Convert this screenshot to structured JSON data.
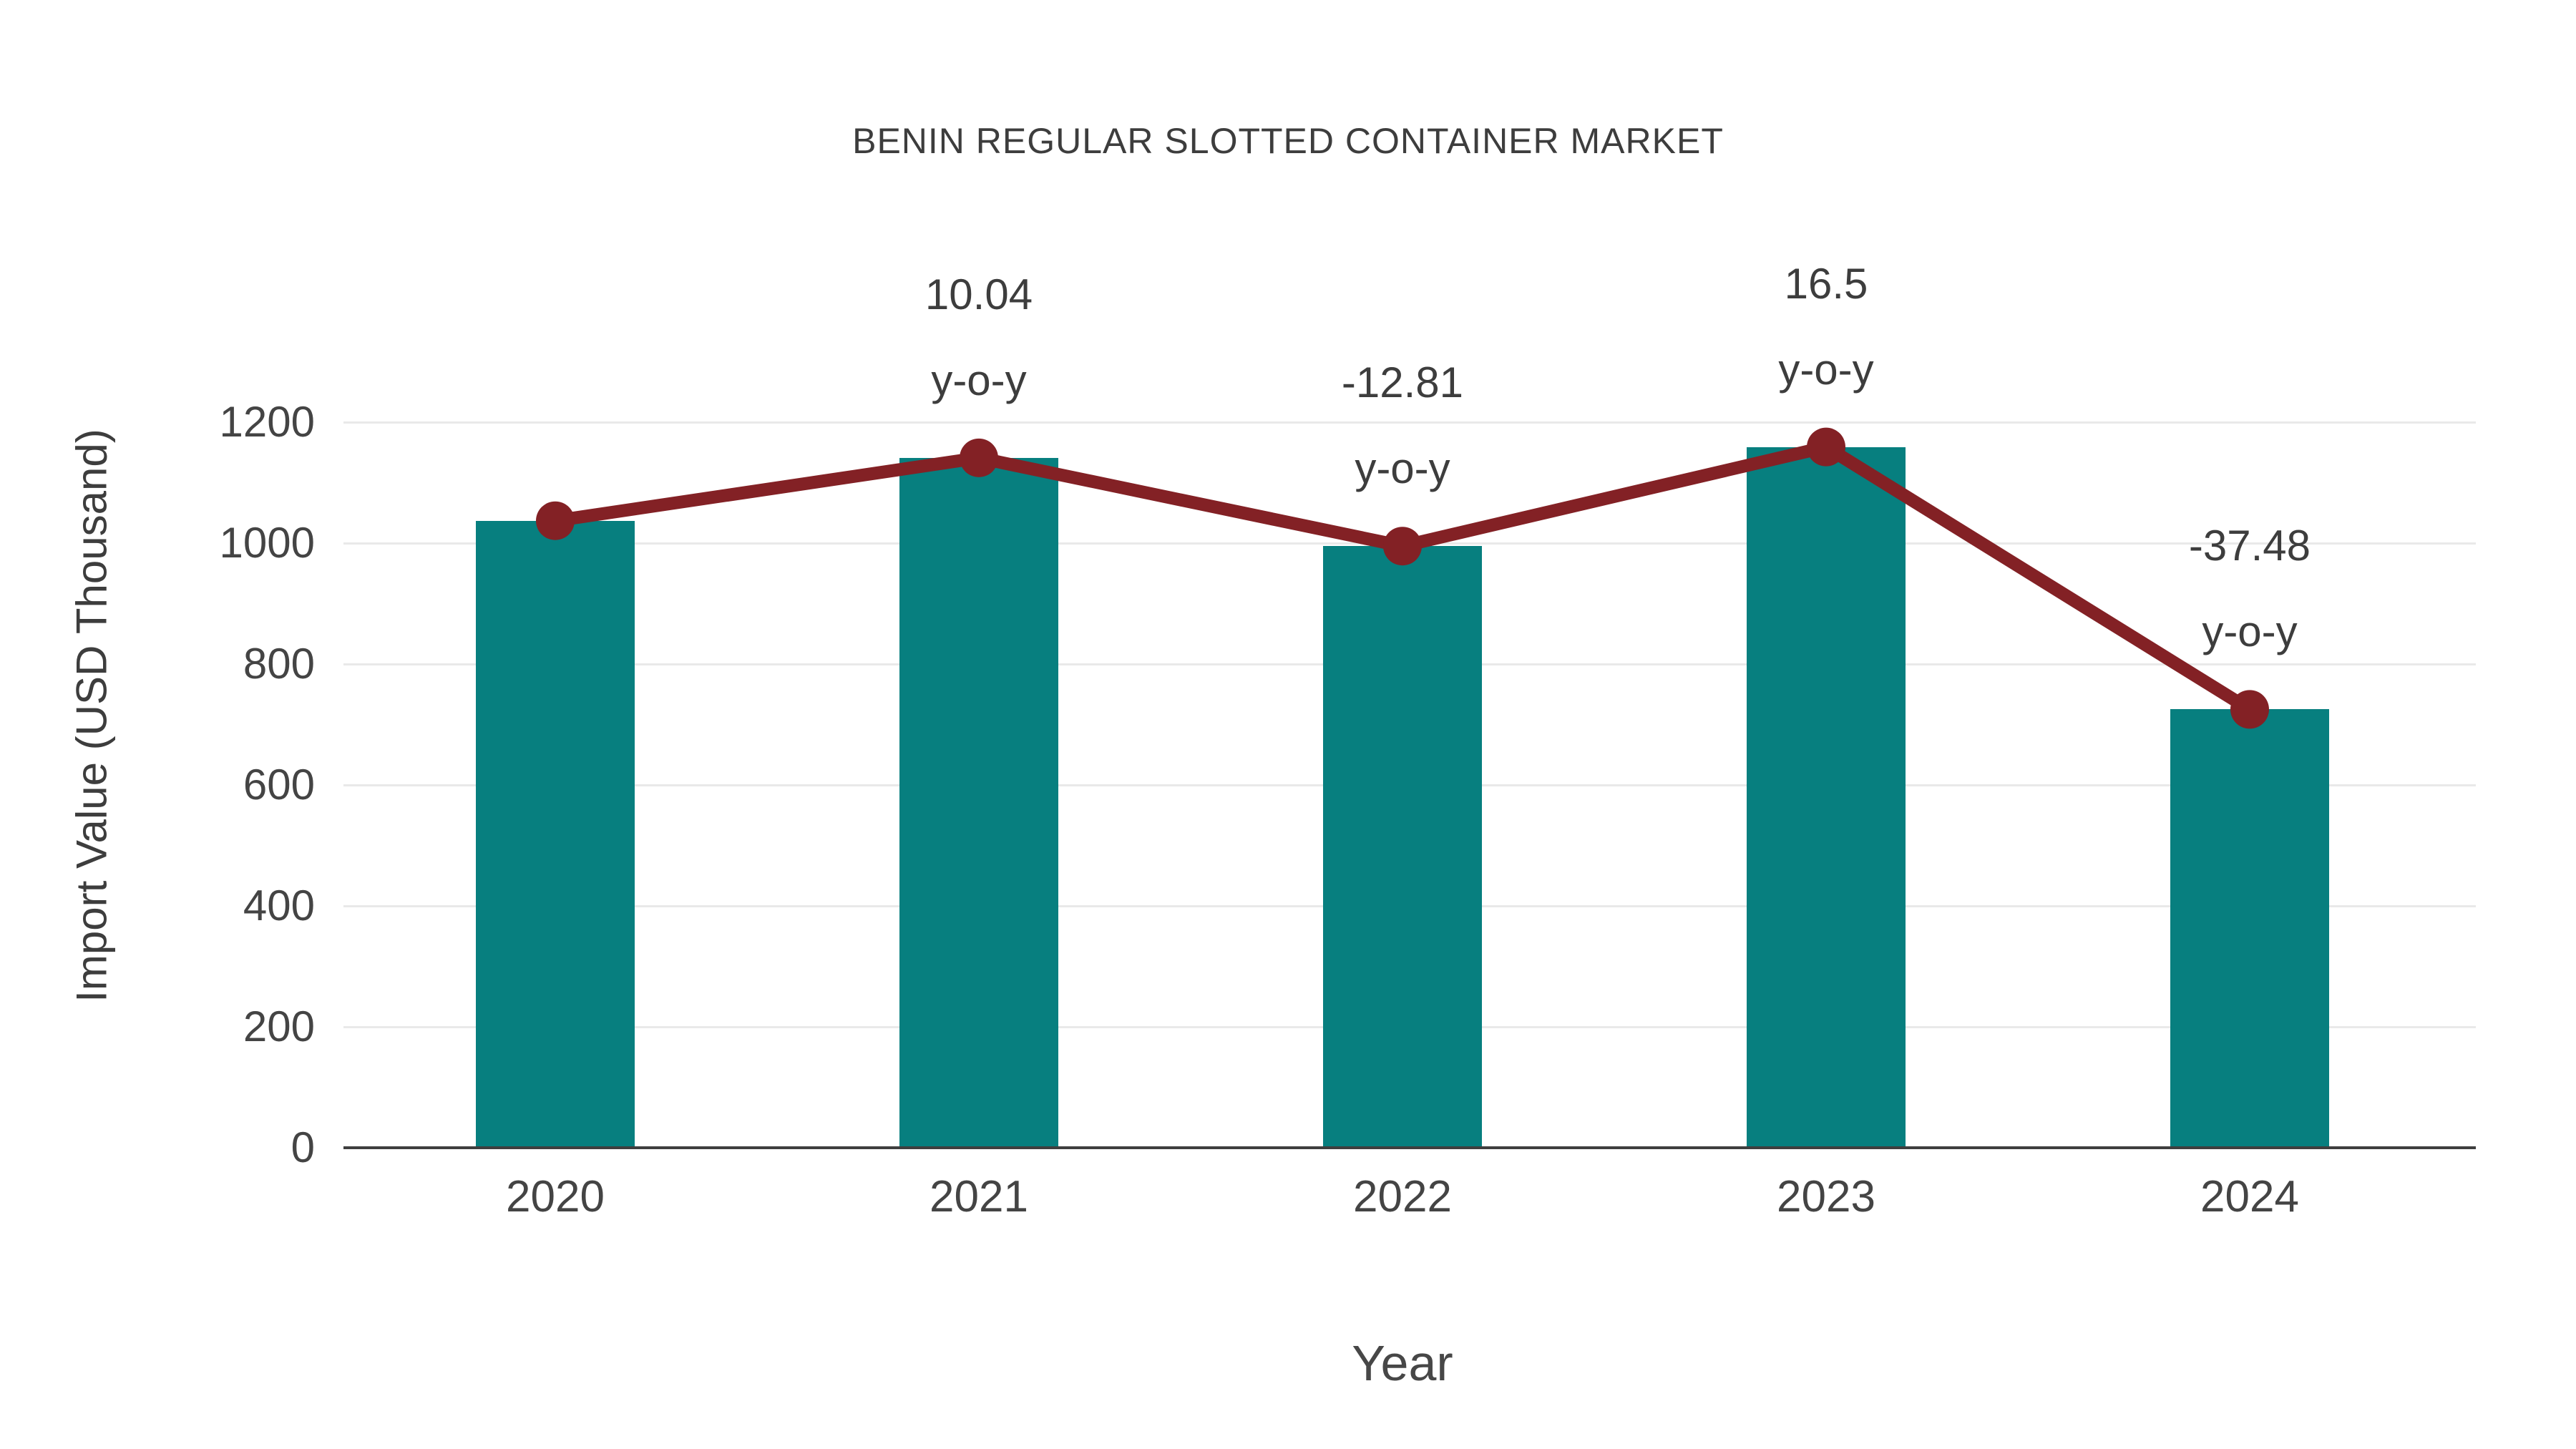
{
  "chart_data": {
    "type": "bar",
    "title": "BENIN REGULAR SLOTTED CONTAINER MARKET",
    "xlabel": "Year",
    "ylabel": "Import Value (USD Thousand)",
    "categories": [
      "2020",
      "2021",
      "2022",
      "2023",
      "2024"
    ],
    "series": [
      {
        "name": "Import Value bars",
        "type": "bar",
        "values": [
          1037,
          1141,
          995,
          1159,
          725
        ]
      },
      {
        "name": "Import Value trend line",
        "type": "line",
        "values": [
          1037,
          1141,
          995,
          1159,
          725
        ]
      }
    ],
    "annotations": [
      {
        "category": "2021",
        "value_text": "10.04",
        "suffix_text": "y-o-y"
      },
      {
        "category": "2022",
        "value_text": "-12.81",
        "suffix_text": "y-o-y"
      },
      {
        "category": "2023",
        "value_text": "16.5",
        "suffix_text": "y-o-y"
      },
      {
        "category": "2024",
        "value_text": "-37.48",
        "suffix_text": "y-o-y"
      }
    ],
    "ylim": [
      0,
      1200
    ],
    "yticks": [
      0,
      200,
      400,
      600,
      800,
      1000,
      1200
    ],
    "grid": true,
    "legend_position": "none",
    "colors": {
      "bar": "#077F7F",
      "line": "#832125",
      "marker": "#832125",
      "axis": "#3F3F3F",
      "grid": "#E9E9E9",
      "text": "#3D3D3D"
    }
  }
}
